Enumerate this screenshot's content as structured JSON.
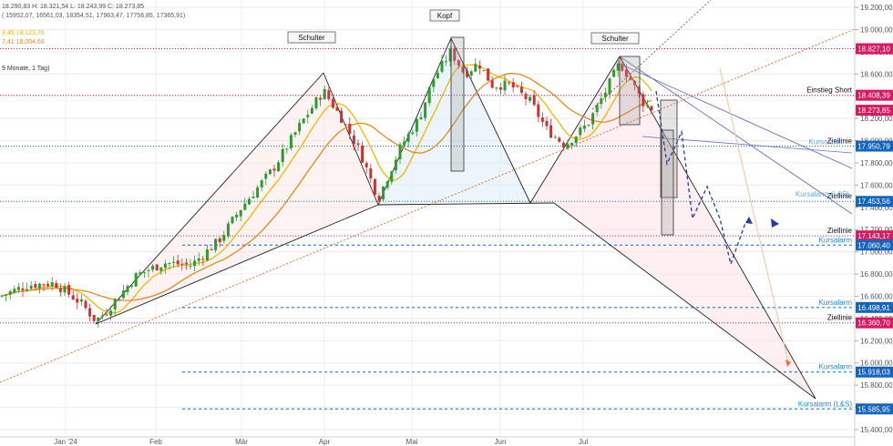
{
  "header": {
    "line1": "18.290,83  H: 18.321,54  L: 18.243,99  C: 18.273,85",
    "line2": "(  15952,07,  16561,03,  18354,51,  17963,47,  17756,85,  17365,91)",
    "line3": "3,45  18.123,76",
    "line4": "7,41  18.004,66",
    "period": "9 Monate, 1 Tag)"
  },
  "chart_data": {
    "type": "candlestick",
    "title": "",
    "xlabel": "",
    "ylabel": "",
    "ylim": [
      15300,
      19300
    ],
    "x_ticks": [
      "Jan '24",
      "Feb",
      "Mär",
      "Apr",
      "Mai",
      "Jun",
      "Jul"
    ],
    "y_ticks": [
      "19.200,00",
      "19.000,00",
      "18.800,00",
      "18.600,00",
      "18.400,00",
      "18.200,00",
      "18.000,00",
      "17.800,00",
      "17.600,00",
      "17.400,00",
      "17.200,00",
      "17.000,00",
      "16.800,00",
      "16.600,00",
      "16.400,00",
      "16.200,00",
      "16.000,00",
      "15.800,00",
      "15.600,00",
      "15.400,00"
    ],
    "y_tick_values": [
      19200,
      19000,
      18800,
      18600,
      18400,
      18200,
      18000,
      17800,
      17600,
      17400,
      17200,
      17000,
      16800,
      16600,
      16400,
      16200,
      16000,
      15800,
      15600,
      15400
    ],
    "grid": true,
    "annotations": [
      "Schulter",
      "Kopf",
      "Schulter"
    ],
    "levels": [
      {
        "value": 18827.1,
        "label": "18.827,10",
        "kind": "dotted",
        "color": "#d81b60",
        "text": ""
      },
      {
        "value": 18408.39,
        "label": "18.408,39",
        "kind": "dotted",
        "color": "#d81b60",
        "text": "Einstieg Short"
      },
      {
        "value": 18273.85,
        "label": "18.273,85",
        "kind": "price",
        "color": "#d81b60",
        "text": ""
      },
      {
        "value": 17950.79,
        "label": "17.950,79",
        "kind": "dotted",
        "color": "#1565c0",
        "text": "Ziellinie"
      },
      {
        "value": 17453.56,
        "label": "17.453,56",
        "kind": "dotted",
        "color": "#1565c0",
        "text": "Ziellinie"
      },
      {
        "value": 17143.17,
        "label": "17.143,17",
        "kind": "dotted",
        "color": "#d81b60",
        "text": "Ziellinie"
      },
      {
        "value": 17060.4,
        "label": "17.060,40",
        "kind": "dashed",
        "color": "#1565c0",
        "text": "Kursalarm"
      },
      {
        "value": 16498.91,
        "label": "16.498,91",
        "kind": "dashed",
        "color": "#1565c0",
        "text": "Kursalarm"
      },
      {
        "value": 16360.7,
        "label": "16.360,70",
        "kind": "dotted",
        "color": "#d81b60",
        "text": "Ziellinie"
      },
      {
        "value": 15918.03,
        "label": "15.918,03",
        "kind": "dashed",
        "color": "#1565c0",
        "text": "Kursalarm"
      },
      {
        "value": 15585.95,
        "label": "15.585,95",
        "kind": "dashed",
        "color": "#1565c0",
        "text": "Kursalarm (L&S)"
      }
    ],
    "extra_labels": [
      "Kursalarm",
      "Kursalarm (L&S)"
    ],
    "sma_colors": {
      "fast": "#f5b700",
      "slow": "#e08a1e"
    },
    "candle_colors": {
      "up": "#2e9b2e",
      "down": "#d32f2f"
    }
  }
}
